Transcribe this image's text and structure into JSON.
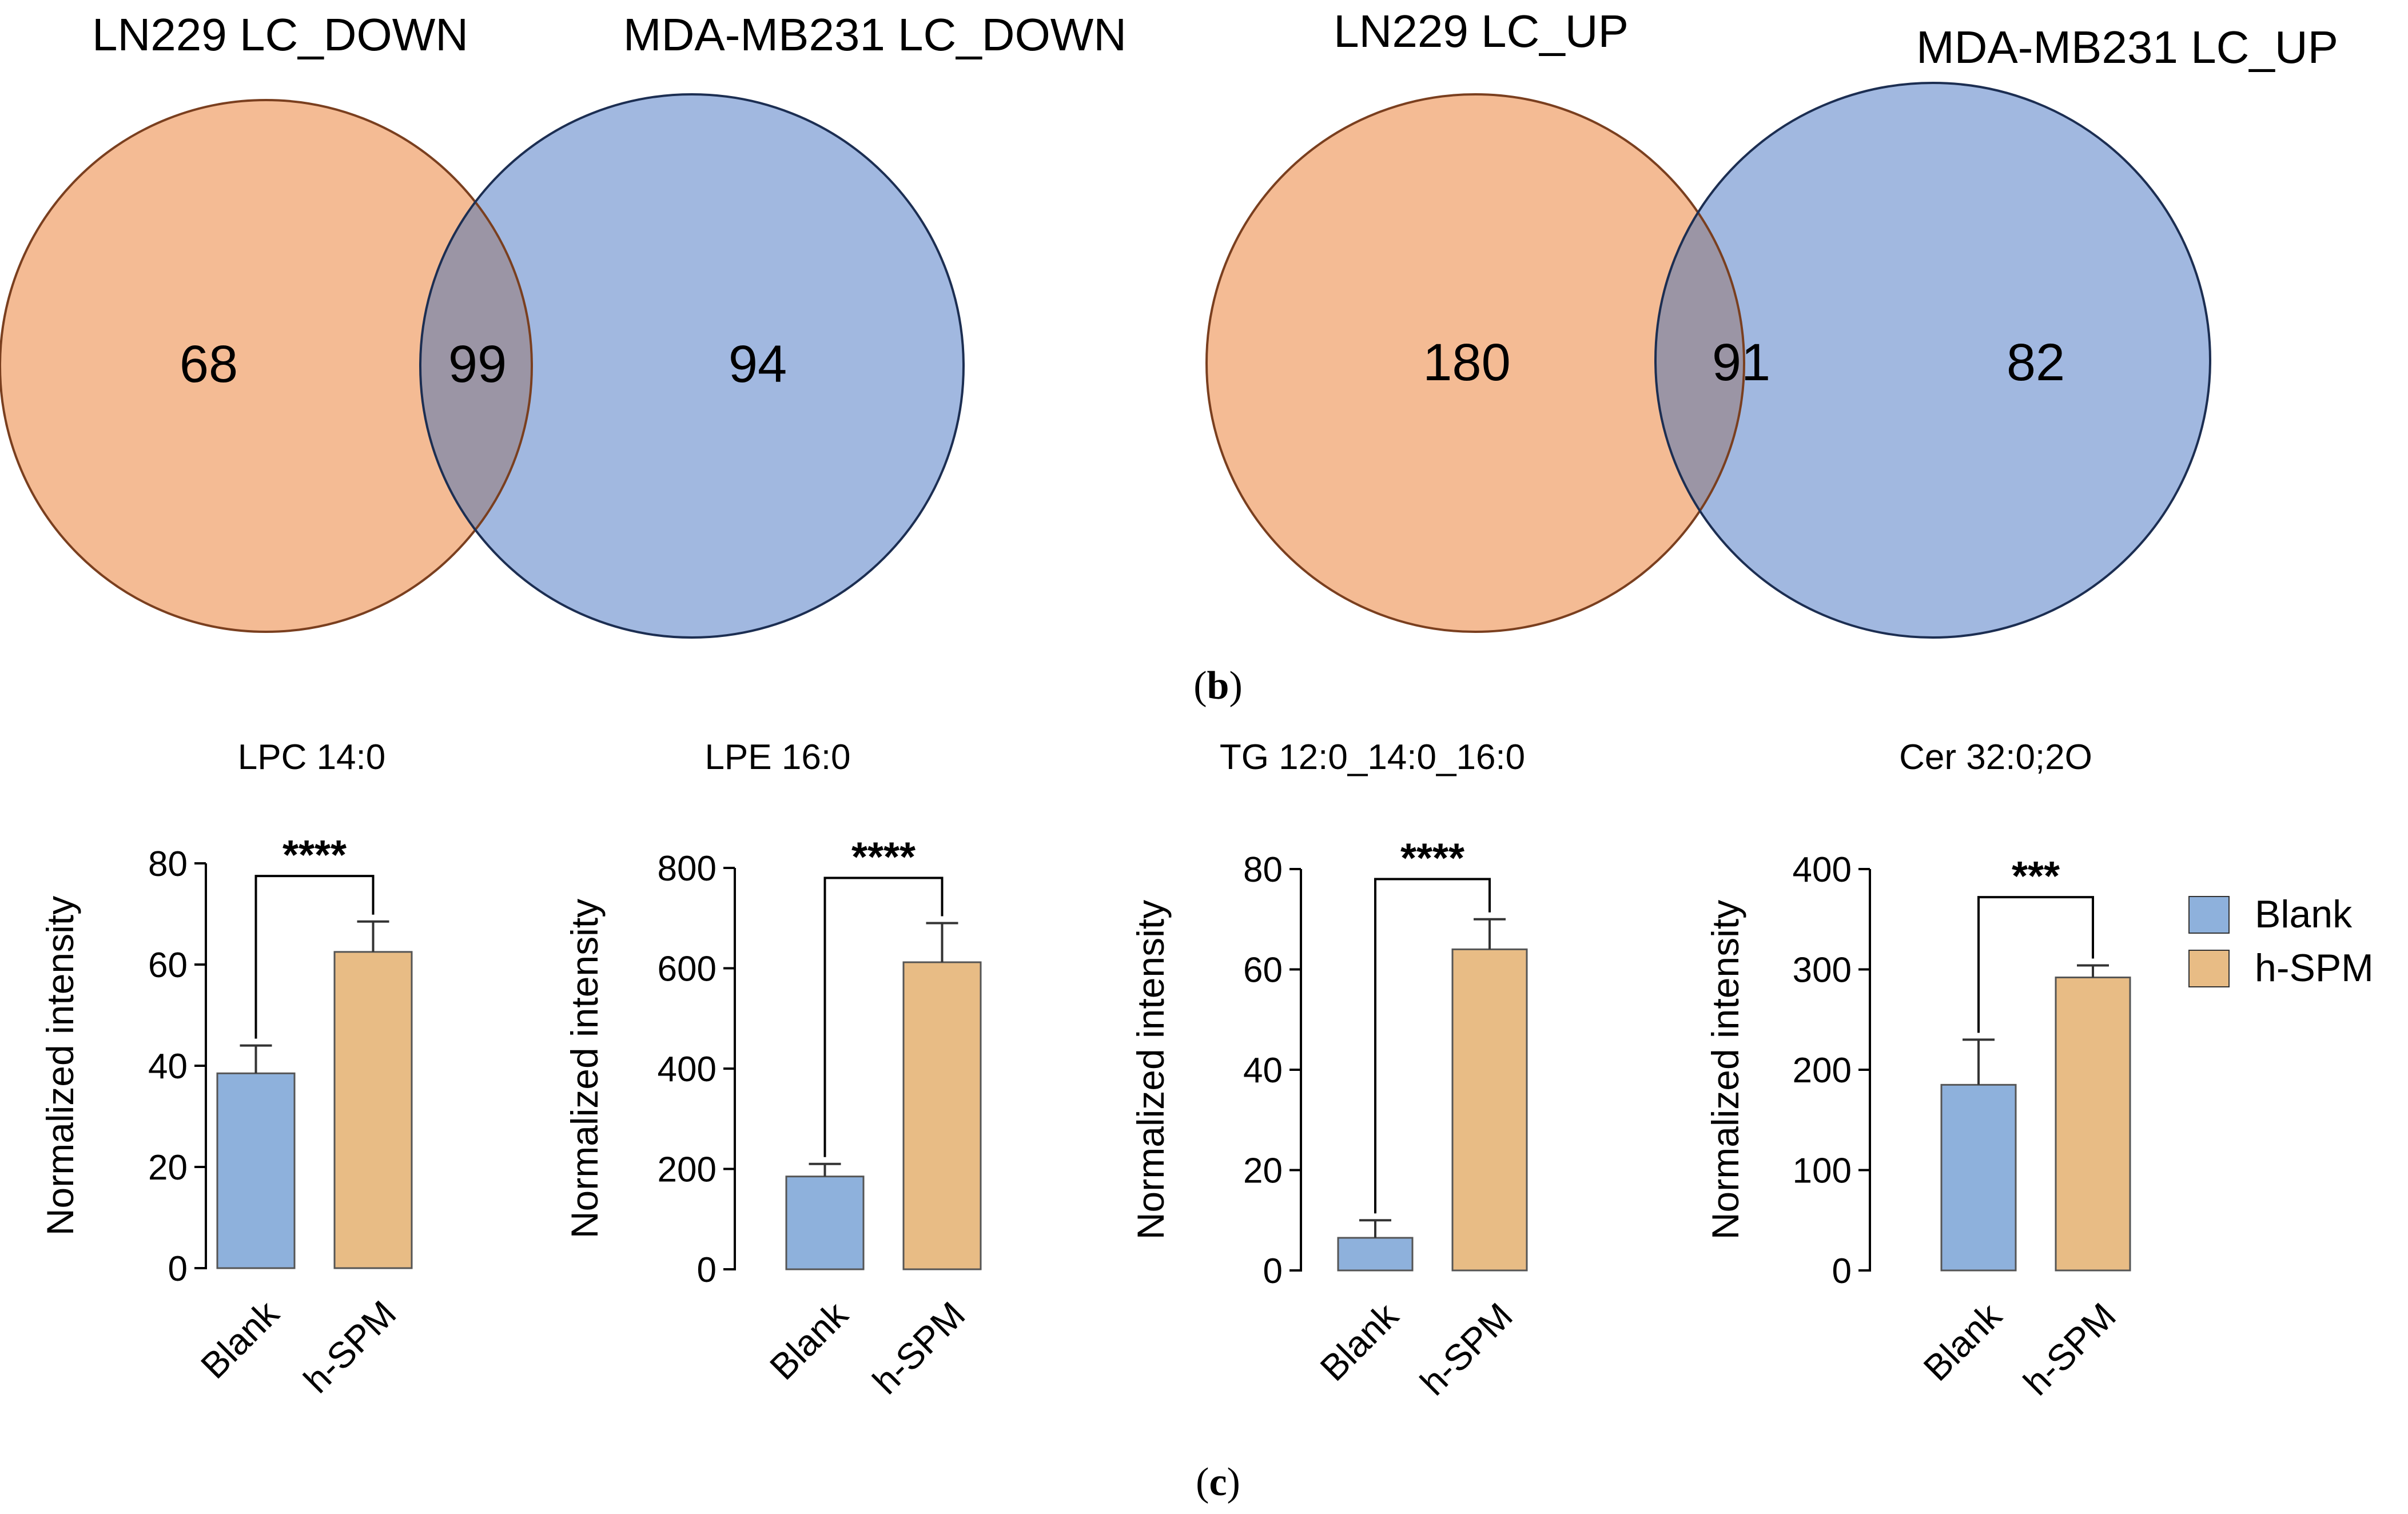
{
  "venn_diagrams": [
    {
      "set_a": "LN229 LC_DOWN",
      "set_b": "MDA-MB231 LC_DOWN",
      "only_a": "68",
      "intersection": "99",
      "only_b": "94"
    },
    {
      "set_a": "LN229 LC_UP",
      "set_b": "MDA-MB231 LC_UP",
      "only_a": "180",
      "intersection": "91",
      "only_b": "82"
    }
  ],
  "captions": {
    "b": {
      "open": "(",
      "letter": "b",
      "close": ")"
    },
    "c": {
      "open": "(",
      "letter": "c",
      "close": ")"
    }
  },
  "legend": {
    "items": [
      {
        "label": "Blank",
        "color": "#8eb1dc"
      },
      {
        "label": "h-SPM",
        "color": "#e8bc85"
      }
    ]
  },
  "colors": {
    "venn_a_fill": "#f4bb94",
    "venn_a_stroke": "#7a3f1f",
    "venn_b_fill": "#a1b8e0",
    "venn_b_stroke": "#1c2e52",
    "venn_overlap": "#9b95a5",
    "blank": "#8eb1dc",
    "hspm": "#e8bc85"
  },
  "chart_data": [
    {
      "type": "bar",
      "title": "LPC 14:0",
      "ylabel": "Normalized intensity",
      "categories": [
        "Blank",
        "h-SPM"
      ],
      "values": [
        38.5,
        62.5
      ],
      "errors": [
        5.5,
        6
      ],
      "ylim": [
        0,
        80
      ],
      "ticks": [
        0,
        20,
        40,
        60,
        80
      ],
      "tick_labels": [
        "0",
        "20",
        "40",
        "60",
        "80"
      ],
      "significance": "****",
      "bracket_top": 77.5
    },
    {
      "type": "bar",
      "title": "LPE 16:0",
      "ylabel": "Normalized intensity",
      "categories": [
        "Blank",
        "h-SPM"
      ],
      "values": [
        185,
        612
      ],
      "errors": [
        25,
        78
      ],
      "ylim": [
        0,
        800
      ],
      "ticks": [
        0,
        200,
        400,
        600,
        800
      ],
      "tick_labels": [
        "0",
        "200",
        "400",
        "600",
        "800"
      ],
      "significance": "****",
      "bracket_top": 780
    },
    {
      "type": "bar",
      "title": "TG 12:0_14:0_16:0",
      "ylabel": "Normalized intensity",
      "categories": [
        "Blank",
        "h-SPM"
      ],
      "values": [
        6.5,
        64
      ],
      "errors": [
        3.5,
        6
      ],
      "ylim": [
        0,
        80
      ],
      "ticks": [
        0,
        20,
        40,
        60,
        80
      ],
      "tick_labels": [
        "0",
        "20",
        "40",
        "60",
        "80"
      ],
      "significance": "****",
      "bracket_top": 78
    },
    {
      "type": "bar",
      "title": "Cer 32:0;2O",
      "ylabel": "Normalized intensity",
      "categories": [
        "Blank",
        "h-SPM"
      ],
      "values": [
        185,
        292
      ],
      "errors": [
        45,
        12
      ],
      "ylim": [
        0,
        400
      ],
      "ticks": [
        0,
        100,
        200,
        300,
        400
      ],
      "tick_labels": [
        "0",
        "100",
        "200",
        "300",
        "400"
      ],
      "significance": "***",
      "bracket_top": 372
    }
  ]
}
